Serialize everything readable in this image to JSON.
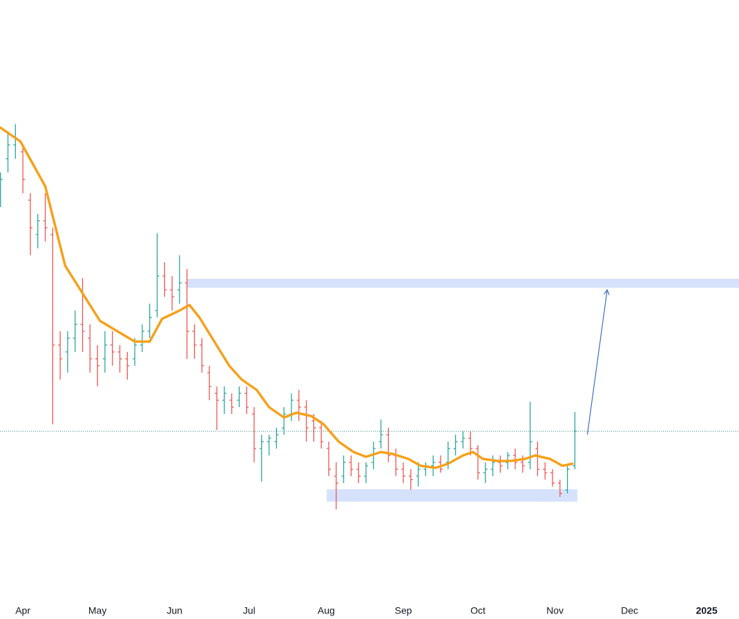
{
  "chart_data": {
    "type": "ohlc",
    "xlim": [
      -9.2,
      288
    ],
    "ylim": [
      0,
      86
    ],
    "xticks": [
      {
        "value": 0,
        "label": "Apr"
      },
      {
        "value": 30,
        "label": "May"
      },
      {
        "value": 61,
        "label": "Jun"
      },
      {
        "value": 91,
        "label": "Jul"
      },
      {
        "value": 122,
        "label": "Aug"
      },
      {
        "value": 153,
        "label": "Sep"
      },
      {
        "value": 183,
        "label": "Oct"
      },
      {
        "value": 214,
        "label": "Nov"
      },
      {
        "value": 244,
        "label": "Dec"
      },
      {
        "value": 275,
        "label": "2025"
      }
    ],
    "up_color": "#26a69a",
    "down_color": "#ef5350",
    "x": [
      -9,
      -6,
      -3,
      0,
      3,
      6,
      9,
      12,
      15,
      18,
      21,
      24,
      27,
      30,
      33,
      36,
      39,
      42,
      45,
      48,
      51,
      54,
      57,
      60,
      63,
      66,
      69,
      72,
      75,
      78,
      81,
      84,
      87,
      90,
      93,
      96,
      99,
      102,
      105,
      108,
      111,
      114,
      117,
      120,
      123,
      126,
      129,
      132,
      135,
      138,
      141,
      144,
      147,
      150,
      153,
      156,
      159,
      162,
      165,
      168,
      171,
      174,
      177,
      180,
      183,
      186,
      189,
      192,
      195,
      198,
      201,
      204,
      207,
      210,
      213,
      216,
      219,
      222
    ],
    "open": [
      58,
      63,
      65,
      64,
      57,
      52,
      54,
      52,
      36,
      35,
      37,
      39,
      37,
      34,
      34,
      36,
      35,
      34,
      34,
      36,
      38,
      41,
      46,
      44,
      44,
      45,
      38,
      36,
      32,
      29,
      28,
      28,
      28,
      29,
      26,
      21,
      22,
      22,
      24,
      26,
      28,
      27,
      25,
      24,
      21,
      17,
      17,
      19,
      18,
      17,
      19,
      22,
      23,
      20,
      18,
      17,
      17,
      18,
      18.5,
      19,
      19,
      21,
      22,
      22.5,
      21,
      17.5,
      18,
      19,
      19,
      20,
      19,
      19,
      21,
      18,
      17.5,
      16,
      15,
      18.5
    ],
    "high": [
      61,
      67,
      68,
      65,
      58,
      55,
      58,
      53,
      38,
      38,
      41,
      45.7,
      39,
      36,
      38,
      38,
      36,
      35,
      37,
      39,
      42,
      52.2,
      48,
      46,
      49,
      47,
      39,
      37,
      33,
      30,
      30,
      29,
      30,
      30,
      27,
      23,
      23,
      24,
      27,
      29,
      29.5,
      28,
      26,
      25,
      22,
      19,
      20,
      20,
      19,
      19,
      22,
      25.2,
      24,
      21,
      19,
      18,
      19,
      19,
      20,
      20,
      22,
      23,
      23.5,
      23.5,
      21.5,
      19,
      20,
      20,
      20.5,
      21,
      20,
      27.8,
      22,
      19,
      18,
      16.5,
      18.5,
      26.3
    ],
    "low": [
      56,
      61,
      63,
      58,
      49,
      50,
      51,
      24.5,
      31,
      32,
      35,
      35,
      32,
      30,
      32,
      33,
      32,
      31,
      33,
      35,
      37,
      40,
      43,
      41,
      42,
      34,
      34,
      32,
      28,
      23.7,
      26,
      26,
      27,
      26,
      19,
      16.2,
      20,
      21,
      23,
      25,
      25,
      22,
      22,
      21,
      17,
      12.2,
      16,
      17,
      16,
      16,
      18,
      21,
      19,
      17,
      16,
      15,
      15.5,
      17,
      17,
      17.5,
      18,
      20,
      21,
      20,
      16.5,
      16,
      17,
      17.5,
      18,
      18,
      17.5,
      18,
      17,
      16.5,
      15.5,
      14,
      14.5,
      18
    ],
    "close": [
      60,
      65,
      66,
      60,
      53,
      54,
      53,
      36,
      34,
      37,
      39,
      38,
      34,
      33,
      36,
      35,
      34,
      33,
      36,
      38,
      40,
      46,
      44,
      43,
      45,
      38,
      36,
      33,
      30,
      28,
      29,
      27,
      29,
      27,
      21,
      22,
      22.5,
      23,
      26,
      28,
      27,
      24,
      24,
      22,
      18,
      16,
      19,
      18,
      17,
      18.5,
      21,
      23,
      20,
      18,
      17,
      16.5,
      18,
      18.5,
      19,
      18,
      21,
      22,
      22.5,
      21,
      17.5,
      18,
      19,
      18.5,
      20,
      19,
      18.5,
      22,
      18,
      17.5,
      16,
      14.5,
      18,
      23.5
    ],
    "overlays": [
      {
        "color": "#f5a01a",
        "x": [
          -9,
          -1,
          9,
          17,
          24,
          31,
          38,
          45,
          51,
          56,
          63,
          67,
          71,
          77,
          83,
          88,
          94,
          99,
          105,
          110,
          116,
          121,
          127,
          133,
          138,
          144,
          149,
          155,
          160,
          166,
          171,
          177,
          181,
          185,
          191,
          196,
          202,
          206,
          212,
          217,
          221
        ],
        "values": [
          67.5,
          65.5,
          59,
          47.5,
          43.5,
          39.5,
          38,
          36.5,
          36.5,
          39.8,
          41,
          41.8,
          40,
          36.5,
          33,
          31,
          29.5,
          27,
          25.5,
          26.2,
          25.7,
          24.5,
          22,
          20.5,
          19.8,
          20.5,
          20.2,
          19.5,
          18.5,
          18.2,
          18.8,
          20,
          20.5,
          19.5,
          19.2,
          19.2,
          19.5,
          20,
          19.5,
          18.5,
          18.8
        ]
      }
    ],
    "price_line": {
      "value": 23.5,
      "color": "#1b7a6e"
    },
    "zones": [
      {
        "x": [
          65.8,
          288
        ],
        "y": [
          44.3,
          45.6
        ],
        "color": "#d6e2fb"
      },
      {
        "x": [
          122.2,
          223
        ],
        "y": [
          13.3,
          15.1
        ],
        "color": "#d6e2fb"
      }
    ],
    "arrows": [
      {
        "x": [
          227,
          235
        ],
        "y": [
          23,
          44
        ],
        "color": "#3d6fc4"
      }
    ]
  }
}
